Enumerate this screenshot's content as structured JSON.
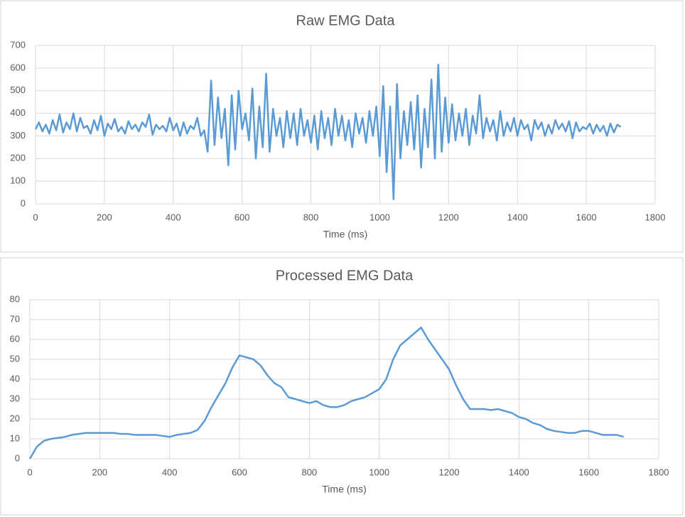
{
  "chart_data": [
    {
      "type": "line",
      "title": "Raw EMG Data",
      "xlabel": "Time (ms)",
      "color": "#5b9bd5",
      "grid": true,
      "xlim": [
        0,
        1800
      ],
      "xticks": [
        0,
        200,
        400,
        600,
        800,
        1000,
        1200,
        1400,
        1600,
        1800
      ],
      "ylim": [
        0,
        700
      ],
      "yticks": [
        0,
        100,
        200,
        300,
        400,
        500,
        600,
        700
      ],
      "x": [
        0,
        10,
        20,
        30,
        40,
        50,
        60,
        70,
        80,
        90,
        100,
        110,
        120,
        130,
        140,
        150,
        160,
        170,
        180,
        190,
        200,
        210,
        220,
        230,
        240,
        250,
        260,
        270,
        280,
        290,
        300,
        310,
        320,
        330,
        340,
        350,
        360,
        370,
        380,
        390,
        400,
        410,
        420,
        430,
        440,
        450,
        460,
        470,
        480,
        490,
        500,
        510,
        520,
        530,
        540,
        550,
        560,
        570,
        580,
        590,
        600,
        610,
        620,
        630,
        640,
        650,
        660,
        670,
        680,
        690,
        700,
        710,
        720,
        730,
        740,
        750,
        760,
        770,
        780,
        790,
        800,
        810,
        820,
        830,
        840,
        850,
        860,
        870,
        880,
        890,
        900,
        910,
        920,
        930,
        940,
        950,
        960,
        970,
        980,
        990,
        1000,
        1010,
        1020,
        1030,
        1040,
        1050,
        1060,
        1070,
        1080,
        1090,
        1100,
        1110,
        1120,
        1130,
        1140,
        1150,
        1160,
        1170,
        1180,
        1190,
        1200,
        1210,
        1220,
        1230,
        1240,
        1250,
        1260,
        1270,
        1280,
        1290,
        1300,
        1310,
        1320,
        1330,
        1340,
        1350,
        1360,
        1370,
        1380,
        1390,
        1400,
        1410,
        1420,
        1430,
        1440,
        1450,
        1460,
        1470,
        1480,
        1490,
        1500,
        1510,
        1520,
        1530,
        1540,
        1550,
        1560,
        1570,
        1580,
        1590,
        1600,
        1610,
        1620,
        1630,
        1640,
        1650,
        1660,
        1670,
        1680,
        1690,
        1700
      ],
      "values": [
        330,
        360,
        320,
        350,
        310,
        370,
        325,
        395,
        315,
        360,
        330,
        400,
        320,
        380,
        335,
        345,
        310,
        370,
        325,
        390,
        300,
        355,
        330,
        375,
        320,
        340,
        310,
        365,
        330,
        350,
        320,
        360,
        340,
        395,
        305,
        350,
        330,
        345,
        320,
        380,
        325,
        355,
        300,
        360,
        310,
        345,
        330,
        380,
        300,
        325,
        230,
        545,
        260,
        470,
        290,
        420,
        170,
        480,
        240,
        500,
        330,
        400,
        280,
        510,
        200,
        430,
        250,
        575,
        230,
        420,
        300,
        380,
        250,
        410,
        290,
        400,
        260,
        420,
        300,
        370,
        270,
        390,
        240,
        410,
        290,
        380,
        260,
        420,
        300,
        390,
        280,
        370,
        250,
        400,
        310,
        380,
        270,
        410,
        300,
        430,
        210,
        520,
        140,
        430,
        20,
        530,
        200,
        410,
        260,
        450,
        240,
        480,
        160,
        420,
        250,
        550,
        200,
        615,
        230,
        470,
        270,
        440,
        280,
        400,
        300,
        420,
        260,
        390,
        310,
        480,
        290,
        380,
        320,
        370,
        280,
        410,
        300,
        360,
        320,
        380,
        300,
        370,
        330,
        350,
        280,
        370,
        330,
        360,
        300,
        350,
        310,
        370,
        330,
        355,
        320,
        365,
        290,
        360,
        320,
        340,
        330,
        355,
        310,
        350,
        320,
        345,
        300,
        355,
        315,
        350,
        340
      ]
    },
    {
      "type": "line",
      "title": "Processed EMG Data",
      "xlabel": "Time (ms)",
      "color": "#5b9bd5",
      "grid": true,
      "xlim": [
        0,
        1800
      ],
      "xticks": [
        0,
        200,
        400,
        600,
        800,
        1000,
        1200,
        1400,
        1600,
        1800
      ],
      "ylim": [
        0,
        80
      ],
      "yticks": [
        0,
        10,
        20,
        30,
        40,
        50,
        60,
        70,
        80
      ],
      "x": [
        0,
        20,
        40,
        60,
        80,
        100,
        120,
        140,
        160,
        180,
        200,
        220,
        240,
        260,
        280,
        300,
        320,
        340,
        360,
        380,
        400,
        420,
        440,
        460,
        480,
        500,
        520,
        540,
        560,
        580,
        600,
        620,
        640,
        660,
        680,
        700,
        720,
        740,
        760,
        780,
        800,
        820,
        840,
        860,
        880,
        900,
        920,
        940,
        960,
        980,
        1000,
        1020,
        1040,
        1060,
        1080,
        1100,
        1120,
        1140,
        1160,
        1180,
        1200,
        1220,
        1240,
        1260,
        1280,
        1300,
        1320,
        1340,
        1360,
        1380,
        1400,
        1420,
        1440,
        1460,
        1480,
        1500,
        1520,
        1540,
        1560,
        1580,
        1600,
        1620,
        1640,
        1660,
        1680,
        1700
      ],
      "values": [
        0,
        6,
        9,
        10,
        10.5,
        11,
        12,
        12.5,
        13,
        13,
        13,
        13,
        13,
        12.5,
        12.5,
        12,
        12,
        12,
        12,
        11.5,
        11,
        12,
        12.5,
        13,
        14.5,
        19,
        26,
        32,
        38,
        46,
        52,
        51,
        50,
        47,
        42,
        38,
        36,
        31,
        30,
        29,
        28,
        29,
        27,
        26,
        26,
        27,
        29,
        30,
        31,
        33,
        35,
        40,
        50,
        57,
        60,
        63,
        66,
        60,
        55,
        50,
        45,
        37,
        30,
        25,
        25,
        25,
        24.5,
        25,
        24,
        23,
        21,
        20,
        18,
        17,
        15,
        14,
        13.5,
        13,
        13,
        14,
        14,
        13,
        12,
        12,
        12,
        11
      ]
    }
  ]
}
